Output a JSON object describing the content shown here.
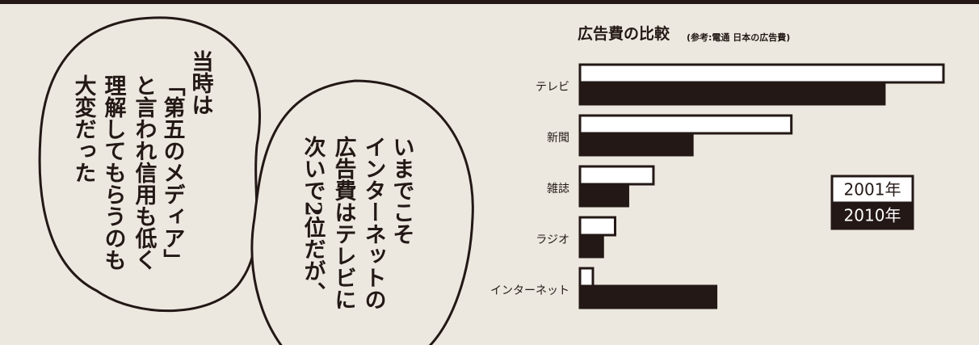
{
  "chart_data": {
    "type": "bar",
    "orientation": "horizontal",
    "title": "広告費の比較",
    "subtitle": "(参考:電通 日本の広告費)",
    "categories": [
      "テレビ",
      "新聞",
      "雑誌",
      "ラジオ",
      "インターネット"
    ],
    "series": [
      {
        "name": "2001年",
        "color": "#ffffff",
        "values": [
          20681,
          12027,
          4180,
          1998,
          735
        ]
      },
      {
        "name": "2010年",
        "color": "#231815",
        "values": [
          17321,
          6396,
          2733,
          1299,
          7747
        ]
      }
    ],
    "annotations": [
      {
        "lines": [
          "当時は",
          "「第五のメディア」",
          "と言われ信用も低く",
          "理解してもらうのも",
          "大変だった"
        ]
      },
      {
        "lines": [
          "いまでこそ",
          "インターネットの",
          "広告費はテレビに",
          "次いで2位だが、"
        ]
      }
    ]
  }
}
